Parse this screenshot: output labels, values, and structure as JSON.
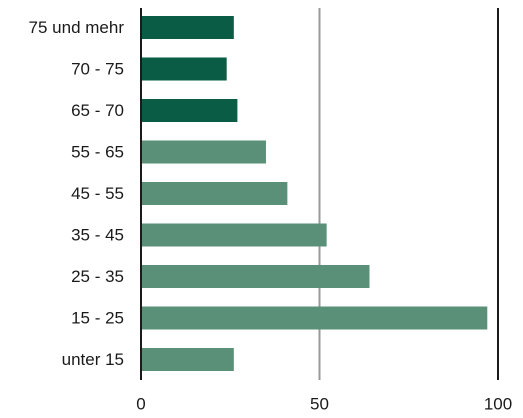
{
  "chart_data": {
    "type": "bar",
    "orientation": "horizontal",
    "categories": [
      "75 und mehr",
      "70 - 75",
      "65 - 70",
      "55 - 65",
      "45 - 55",
      "35 - 45",
      "25 - 35",
      "15 - 25",
      "unter 15"
    ],
    "values": [
      26,
      24,
      27,
      35,
      41,
      52,
      64,
      97,
      26
    ],
    "bar_colors": [
      "#0b5c45",
      "#0b5c45",
      "#0b5c45",
      "#5a9078",
      "#5a9078",
      "#5a9078",
      "#5a9078",
      "#5a9078",
      "#5a9078"
    ],
    "xlim": [
      0,
      100
    ],
    "xticks": [
      0,
      50,
      100
    ],
    "gridlines": [
      {
        "value": 50,
        "color": "#999999"
      },
      {
        "value": 100,
        "color": "#1a1a1a"
      }
    ],
    "title": "",
    "xlabel": "",
    "ylabel": ""
  }
}
